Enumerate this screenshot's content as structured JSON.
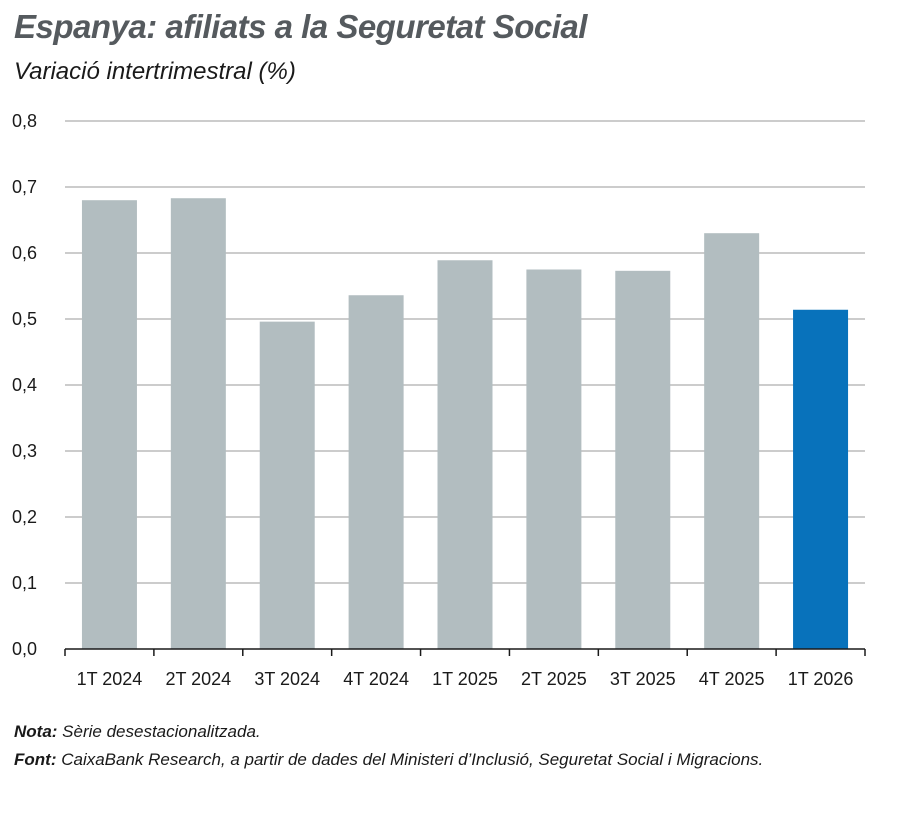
{
  "chart_data": {
    "type": "bar",
    "title": "Espanya: afiliats a la Seguretat Social",
    "subtitle": "Variació intertrimestral (%)",
    "categories": [
      "1T 2024",
      "2T 2024",
      "3T 2024",
      "4T 2024",
      "1T 2025",
      "2T 2025",
      "3T 2025",
      "4T 2025",
      "1T 2026"
    ],
    "values": [
      0.68,
      0.683,
      0.496,
      0.536,
      0.589,
      0.575,
      0.573,
      0.63,
      0.514
    ],
    "ylim": [
      0,
      0.8
    ],
    "yticks": [
      "0,0",
      "0,1",
      "0,2",
      "0,3",
      "0,4",
      "0,5",
      "0,6",
      "0,7",
      "0,8"
    ],
    "ytick_values": [
      0,
      0.1,
      0.2,
      0.3,
      0.4,
      0.5,
      0.6,
      0.7,
      0.8
    ],
    "grid": true,
    "colors": {
      "default": "#b2bdc0",
      "highlight": "#0872bb"
    },
    "highlight_index": 8
  },
  "notes": {
    "nota_label": "Nota:",
    "nota_text": " Sèrie desestacionalitzada.",
    "font_label": "Font:",
    "font_text": " CaixaBank Research, a partir de dades del Ministeri d’Inclusió, Seguretat Social i Migracions."
  }
}
